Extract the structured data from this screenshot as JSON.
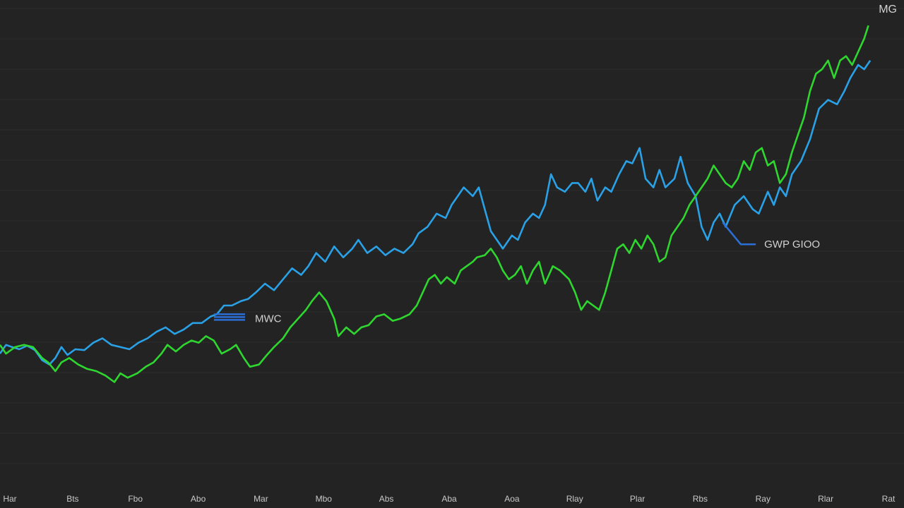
{
  "chart_data": {
    "type": "line",
    "title": "",
    "xlabel": "",
    "ylabel": "",
    "grid": true,
    "corner_label": "MG",
    "x_ticks": [
      "Har",
      "Bts",
      "Fbo",
      "Abo",
      "Mar",
      "Mbo",
      "Abs",
      "Aba",
      "Aoa",
      "Rlay",
      "Plar",
      "Rbs",
      "Ray",
      "Rlar",
      "Rat"
    ],
    "xlim": [
      0,
      14.8
    ],
    "ylim": [
      0,
      100
    ],
    "series": [
      {
        "name": "MWC",
        "color": "#2aa1e6",
        "label_color": "#2b6fd6",
        "label_at_x": 3.6,
        "values": [
          [
            0,
            24
          ],
          [
            0.1,
            26
          ],
          [
            0.2,
            25.5
          ],
          [
            0.32,
            25
          ],
          [
            0.45,
            25.8
          ],
          [
            0.58,
            24.8
          ],
          [
            0.7,
            22.5
          ],
          [
            0.82,
            21.5
          ],
          [
            0.92,
            23
          ],
          [
            1.02,
            25.5
          ],
          [
            1.12,
            23.7
          ],
          [
            1.25,
            25
          ],
          [
            1.4,
            24.8
          ],
          [
            1.55,
            26.5
          ],
          [
            1.7,
            27.5
          ],
          [
            1.85,
            26
          ],
          [
            2.0,
            25.5
          ],
          [
            2.15,
            25
          ],
          [
            2.3,
            26.5
          ],
          [
            2.45,
            27.5
          ],
          [
            2.6,
            29
          ],
          [
            2.75,
            30
          ],
          [
            2.9,
            28.5
          ],
          [
            3.05,
            29.5
          ],
          [
            3.2,
            31
          ],
          [
            3.35,
            31
          ],
          [
            3.5,
            32.5
          ],
          [
            3.6,
            33
          ],
          [
            3.72,
            35
          ],
          [
            3.85,
            35
          ],
          [
            4.0,
            36
          ],
          [
            4.12,
            36.5
          ],
          [
            4.25,
            38
          ],
          [
            4.4,
            40
          ],
          [
            4.55,
            38.5
          ],
          [
            4.7,
            41
          ],
          [
            4.85,
            43.5
          ],
          [
            5.0,
            42
          ],
          [
            5.12,
            44
          ],
          [
            5.25,
            47
          ],
          [
            5.4,
            45
          ],
          [
            5.55,
            48.5
          ],
          [
            5.7,
            46
          ],
          [
            5.85,
            48
          ],
          [
            5.95,
            50
          ],
          [
            6.1,
            47
          ],
          [
            6.25,
            48.5
          ],
          [
            6.4,
            46.5
          ],
          [
            6.55,
            48
          ],
          [
            6.7,
            47
          ],
          [
            6.85,
            49
          ],
          [
            6.95,
            51.5
          ],
          [
            7.1,
            53
          ],
          [
            7.25,
            56
          ],
          [
            7.4,
            55
          ],
          [
            7.5,
            58
          ],
          [
            7.6,
            60
          ],
          [
            7.7,
            62
          ],
          [
            7.85,
            60
          ],
          [
            7.95,
            62
          ],
          [
            8.05,
            57
          ],
          [
            8.15,
            52
          ],
          [
            8.25,
            50
          ],
          [
            8.35,
            48
          ],
          [
            8.5,
            51
          ],
          [
            8.6,
            50
          ],
          [
            8.72,
            54
          ],
          [
            8.85,
            56
          ],
          [
            8.95,
            55
          ],
          [
            9.05,
            58
          ],
          [
            9.15,
            65
          ],
          [
            9.25,
            62
          ],
          [
            9.38,
            61
          ],
          [
            9.5,
            63
          ],
          [
            9.6,
            63
          ],
          [
            9.72,
            61
          ],
          [
            9.82,
            64
          ],
          [
            9.92,
            59
          ],
          [
            10.05,
            62
          ],
          [
            10.15,
            61
          ],
          [
            10.28,
            65
          ],
          [
            10.4,
            68
          ],
          [
            10.5,
            67.5
          ],
          [
            10.62,
            71
          ],
          [
            10.72,
            64
          ],
          [
            10.85,
            62
          ],
          [
            10.95,
            66
          ],
          [
            11.05,
            62
          ],
          [
            11.2,
            64
          ],
          [
            11.3,
            69
          ],
          [
            11.42,
            63
          ],
          [
            11.55,
            60
          ],
          [
            11.65,
            53
          ],
          [
            11.75,
            50
          ],
          [
            11.85,
            54
          ],
          [
            11.95,
            56
          ],
          [
            12.05,
            53
          ],
          [
            12.2,
            58
          ],
          [
            12.35,
            60
          ],
          [
            12.5,
            57
          ],
          [
            12.6,
            56
          ],
          [
            12.75,
            61
          ],
          [
            12.85,
            58
          ],
          [
            12.95,
            62
          ],
          [
            13.05,
            60
          ],
          [
            13.15,
            65
          ],
          [
            13.3,
            68
          ],
          [
            13.45,
            73
          ],
          [
            13.6,
            80
          ],
          [
            13.75,
            82
          ],
          [
            13.9,
            81
          ],
          [
            14.02,
            84
          ],
          [
            14.12,
            87
          ],
          [
            14.25,
            90
          ],
          [
            14.35,
            89
          ],
          [
            14.45,
            91
          ]
        ]
      },
      {
        "name": "GWP GIOO",
        "color": "#2fd62f",
        "label_color": "#2b6fd6",
        "label_at_x": 12.2,
        "values": [
          [
            0,
            26
          ],
          [
            0.1,
            24
          ],
          [
            0.25,
            25.5
          ],
          [
            0.4,
            26
          ],
          [
            0.55,
            25.5
          ],
          [
            0.7,
            23
          ],
          [
            0.8,
            22
          ],
          [
            0.92,
            20
          ],
          [
            1.02,
            22
          ],
          [
            1.15,
            23
          ],
          [
            1.3,
            21.5
          ],
          [
            1.45,
            20.5
          ],
          [
            1.6,
            20
          ],
          [
            1.75,
            19
          ],
          [
            1.9,
            17.5
          ],
          [
            2.0,
            19.5
          ],
          [
            2.12,
            18.5
          ],
          [
            2.28,
            19.5
          ],
          [
            2.42,
            21
          ],
          [
            2.55,
            22
          ],
          [
            2.68,
            24
          ],
          [
            2.78,
            26
          ],
          [
            2.92,
            24.5
          ],
          [
            3.05,
            26
          ],
          [
            3.18,
            27
          ],
          [
            3.3,
            26.5
          ],
          [
            3.42,
            28
          ],
          [
            3.55,
            27
          ],
          [
            3.68,
            24
          ],
          [
            3.82,
            25
          ],
          [
            3.92,
            26
          ],
          [
            4.05,
            23
          ],
          [
            4.15,
            21
          ],
          [
            4.3,
            21.5
          ],
          [
            4.42,
            23.5
          ],
          [
            4.55,
            25.5
          ],
          [
            4.7,
            27.5
          ],
          [
            4.82,
            30
          ],
          [
            4.95,
            32
          ],
          [
            5.08,
            34
          ],
          [
            5.18,
            36
          ],
          [
            5.3,
            38
          ],
          [
            5.42,
            36
          ],
          [
            5.55,
            32
          ],
          [
            5.62,
            28
          ],
          [
            5.75,
            30
          ],
          [
            5.88,
            28.5
          ],
          [
            6.0,
            30
          ],
          [
            6.12,
            30.5
          ],
          [
            6.25,
            32.5
          ],
          [
            6.38,
            33
          ],
          [
            6.52,
            31.5
          ],
          [
            6.65,
            32
          ],
          [
            6.8,
            33
          ],
          [
            6.92,
            35
          ],
          [
            7.02,
            38
          ],
          [
            7.12,
            41
          ],
          [
            7.22,
            42
          ],
          [
            7.32,
            40
          ],
          [
            7.42,
            41.5
          ],
          [
            7.55,
            40
          ],
          [
            7.65,
            43
          ],
          [
            7.75,
            44
          ],
          [
            7.85,
            45
          ],
          [
            7.92,
            46
          ],
          [
            8.05,
            46.5
          ],
          [
            8.15,
            48
          ],
          [
            8.25,
            46
          ],
          [
            8.35,
            43
          ],
          [
            8.45,
            41
          ],
          [
            8.55,
            42
          ],
          [
            8.65,
            44
          ],
          [
            8.75,
            40
          ],
          [
            8.85,
            43
          ],
          [
            8.95,
            45
          ],
          [
            9.05,
            40
          ],
          [
            9.18,
            44
          ],
          [
            9.3,
            43
          ],
          [
            9.45,
            41
          ],
          [
            9.55,
            38
          ],
          [
            9.65,
            34
          ],
          [
            9.75,
            36
          ],
          [
            9.85,
            35
          ],
          [
            9.95,
            34
          ],
          [
            10.05,
            38
          ],
          [
            10.15,
            43
          ],
          [
            10.25,
            48
          ],
          [
            10.35,
            49
          ],
          [
            10.45,
            47
          ],
          [
            10.55,
            50
          ],
          [
            10.65,
            48
          ],
          [
            10.75,
            51
          ],
          [
            10.85,
            49
          ],
          [
            10.95,
            45
          ],
          [
            11.05,
            46
          ],
          [
            11.15,
            51
          ],
          [
            11.25,
            53
          ],
          [
            11.35,
            55
          ],
          [
            11.45,
            58
          ],
          [
            11.55,
            60
          ],
          [
            11.65,
            62
          ],
          [
            11.75,
            64
          ],
          [
            11.85,
            67
          ],
          [
            11.95,
            65
          ],
          [
            12.05,
            63
          ],
          [
            12.15,
            62
          ],
          [
            12.25,
            64
          ],
          [
            12.35,
            68
          ],
          [
            12.45,
            66
          ],
          [
            12.55,
            70
          ],
          [
            12.65,
            71
          ],
          [
            12.75,
            67
          ],
          [
            12.85,
            68
          ],
          [
            12.95,
            63
          ],
          [
            13.05,
            65
          ],
          [
            13.15,
            70
          ],
          [
            13.25,
            74
          ],
          [
            13.35,
            78
          ],
          [
            13.45,
            84
          ],
          [
            13.55,
            88
          ],
          [
            13.65,
            89
          ],
          [
            13.75,
            91
          ],
          [
            13.85,
            87
          ],
          [
            13.95,
            91
          ],
          [
            14.05,
            92
          ],
          [
            14.15,
            90
          ],
          [
            14.25,
            93
          ],
          [
            14.35,
            96
          ],
          [
            14.42,
            99
          ]
        ]
      }
    ]
  }
}
